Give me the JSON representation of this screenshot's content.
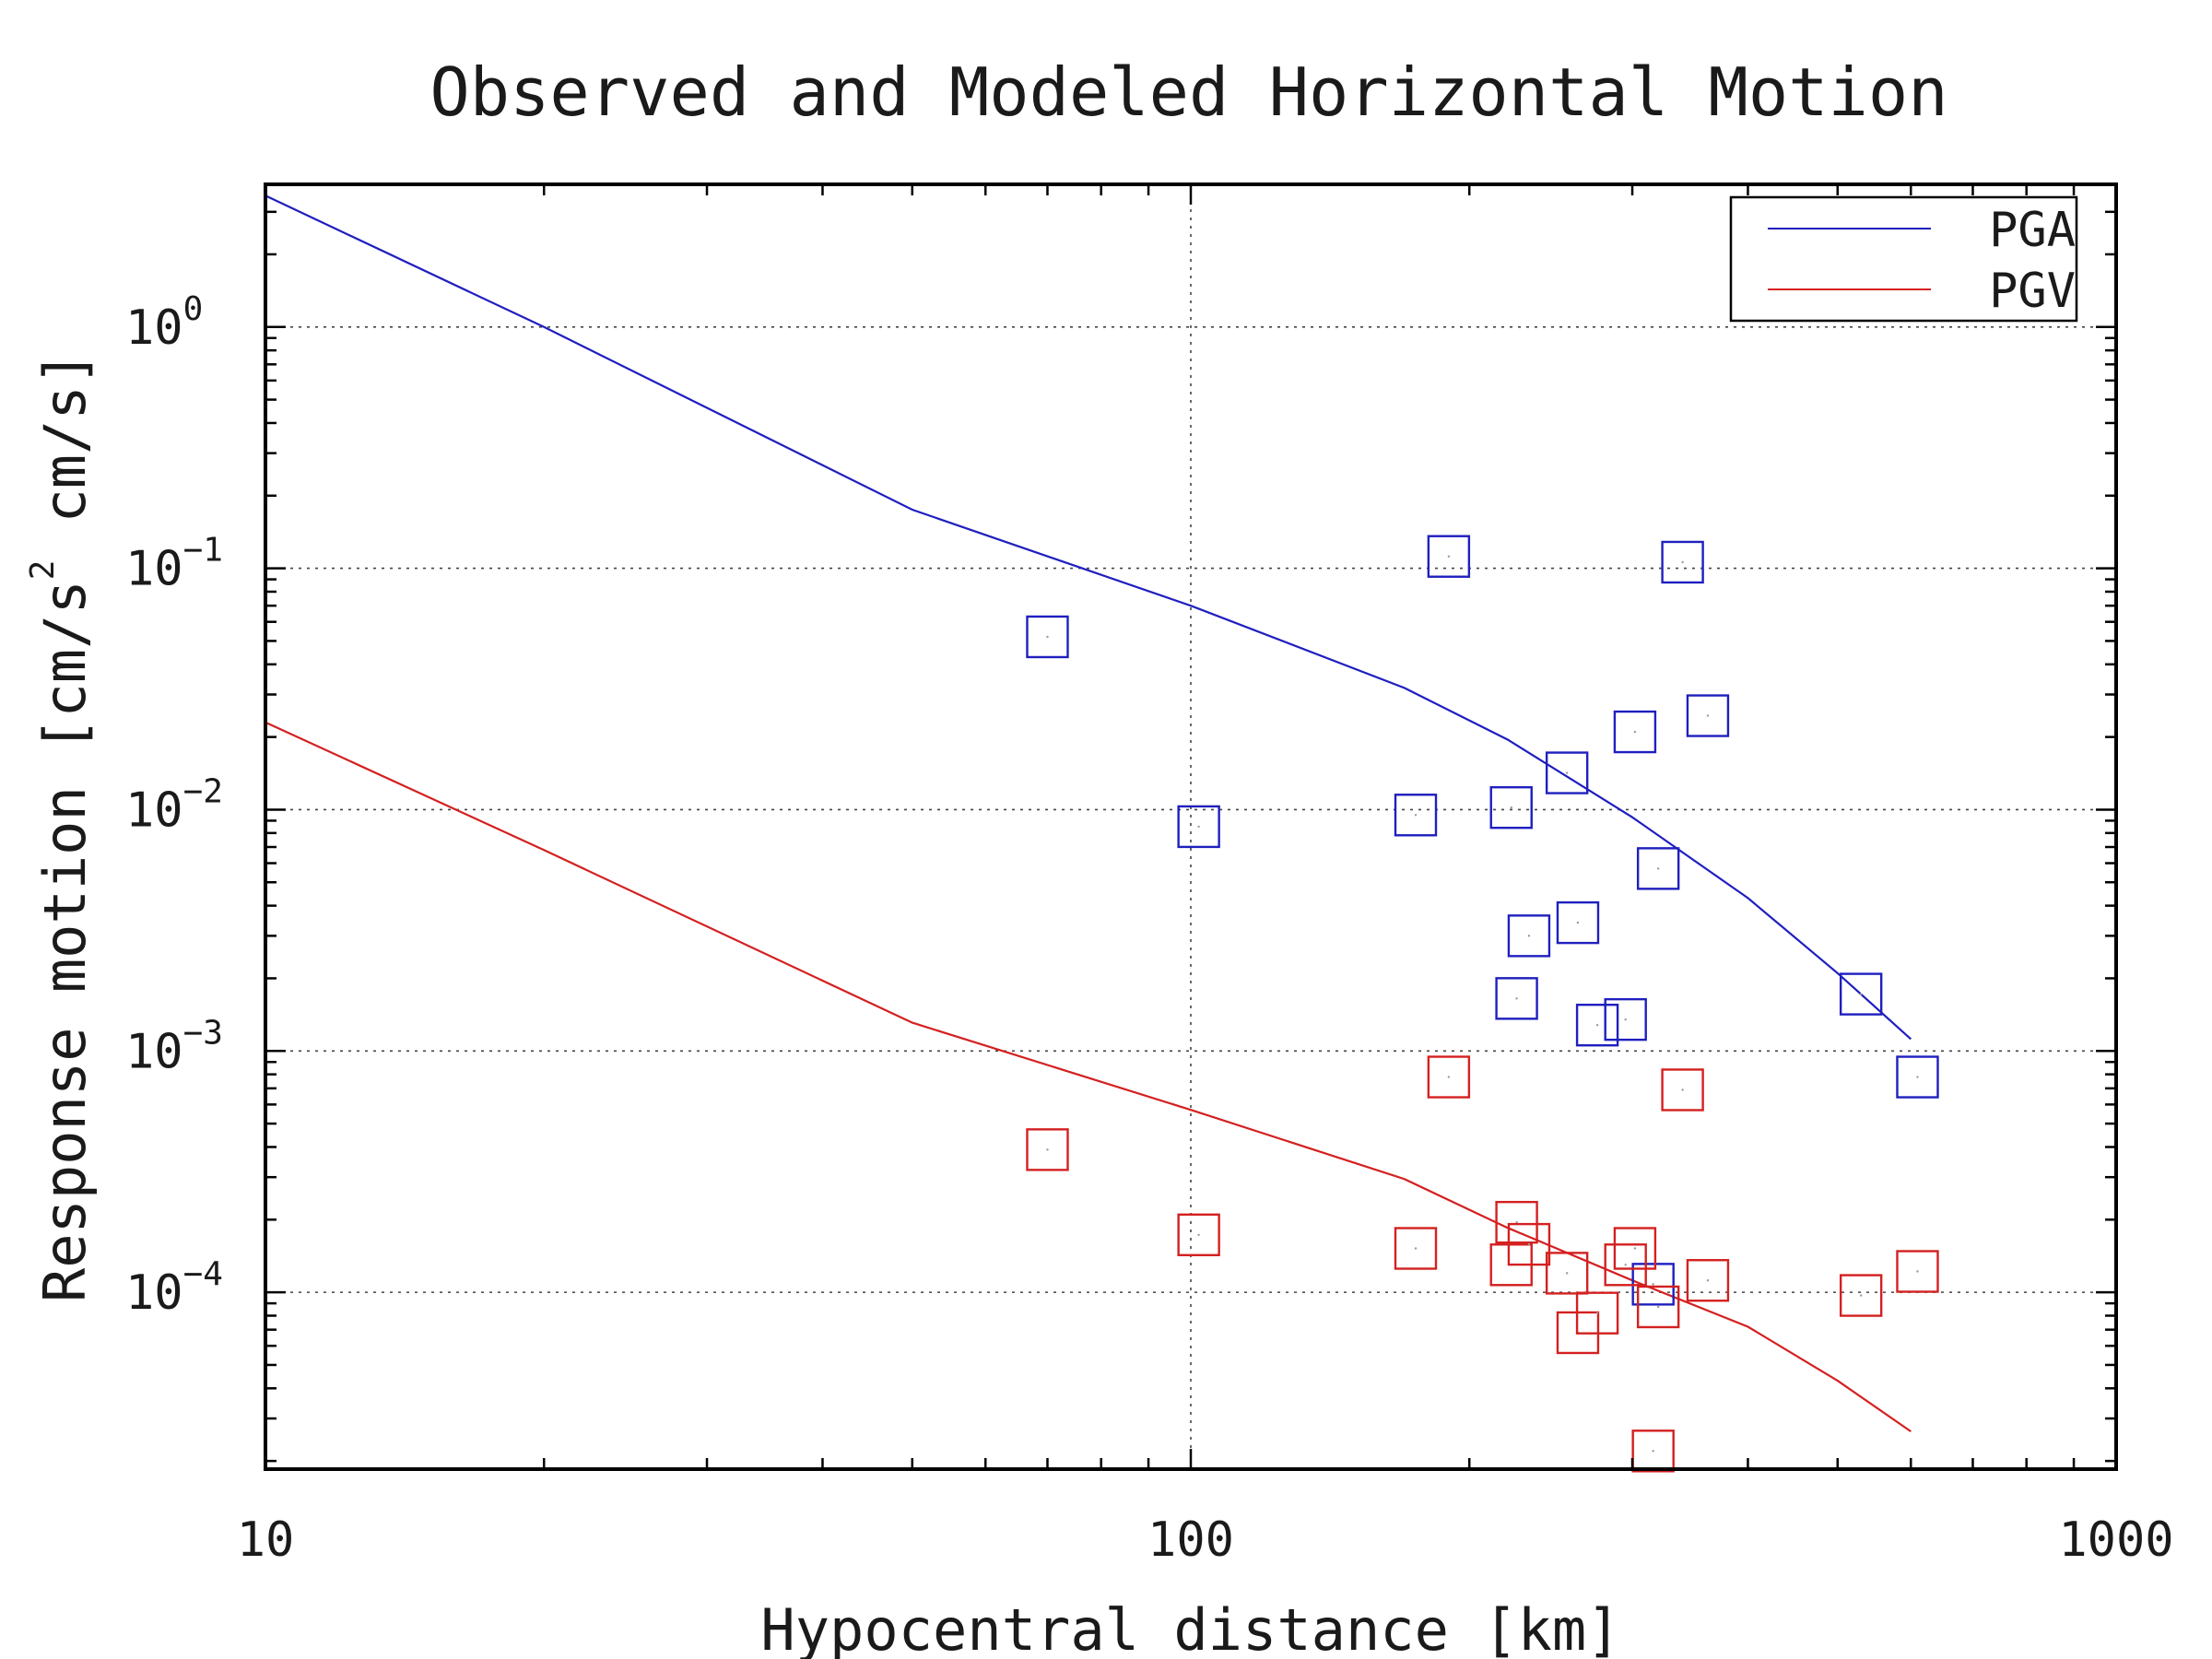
{
  "chart_data": {
    "type": "scatter",
    "title": "Observed and Modeled Horizontal Motion",
    "xlabel": "Hypocentral distance [km]",
    "ylabel": {
      "main": "Response motion [cm/s",
      "sup": "2",
      "tail": "cm/s]"
    },
    "xscale": "log",
    "yscale": "log",
    "xlim": [
      10,
      1000
    ],
    "ylim": [
      1.85e-05,
      3.9
    ],
    "x_ticks": [
      {
        "value": 10,
        "label": "10"
      },
      {
        "value": 100,
        "label": "100"
      },
      {
        "value": 1000,
        "label": "1000"
      }
    ],
    "y_ticks": [
      {
        "value": 1,
        "base": "10",
        "exp": "0"
      },
      {
        "value": 0.1,
        "base": "10",
        "exp": "−1"
      },
      {
        "value": 0.01,
        "base": "10",
        "exp": "−2"
      },
      {
        "value": 0.001,
        "base": "10",
        "exp": "−3"
      },
      {
        "value": 0.0001,
        "base": "10",
        "exp": "−4"
      }
    ],
    "grid": true,
    "legend_position": "top-right",
    "series": [
      {
        "name": "PGA",
        "color": "#1f1fbf",
        "line": [
          [
            10,
            3.5
          ],
          [
            20,
            1.0
          ],
          [
            50,
            0.175
          ],
          [
            100,
            0.07
          ],
          [
            170,
            0.032
          ],
          [
            220,
            0.0195
          ],
          [
            300,
            0.0093
          ],
          [
            400,
            0.0043
          ],
          [
            500,
            0.0021
          ],
          [
            600,
            0.00112
          ]
        ],
        "points": [
          [
            70,
            0.052
          ],
          [
            102,
            0.0085
          ],
          [
            175,
            0.0095
          ],
          [
            190,
            0.112
          ],
          [
            222,
            0.0102
          ],
          [
            225,
            0.00165
          ],
          [
            232,
            0.003
          ],
          [
            255,
            0.0142
          ],
          [
            262,
            0.0034
          ],
          [
            275,
            0.00128
          ],
          [
            295,
            0.00135
          ],
          [
            302,
            0.021
          ],
          [
            320,
            0.0057
          ],
          [
            340,
            0.106
          ],
          [
            362,
            0.0245
          ],
          [
            316,
            0.000108
          ],
          [
            530,
            0.00172
          ],
          [
            610,
            0.00078
          ]
        ]
      },
      {
        "name": "PGV",
        "color": "#d42020",
        "line": [
          [
            10,
            0.023
          ],
          [
            20,
            0.0068
          ],
          [
            50,
            0.00131
          ],
          [
            100,
            0.00057
          ],
          [
            170,
            0.000295
          ],
          [
            220,
            0.000185
          ],
          [
            300,
            0.000112
          ],
          [
            400,
            7.2e-05
          ],
          [
            500,
            4.3e-05
          ],
          [
            600,
            2.65e-05
          ]
        ],
        "points": [
          [
            70,
            0.00039
          ],
          [
            102,
            0.000173
          ],
          [
            175,
            0.000152
          ],
          [
            190,
            0.00078
          ],
          [
            222,
            0.00013
          ],
          [
            225,
            0.000195
          ],
          [
            232,
            0.000158
          ],
          [
            255,
            0.00012
          ],
          [
            262,
            6.8e-05
          ],
          [
            275,
            8.2e-05
          ],
          [
            295,
            0.00013
          ],
          [
            302,
            0.000152
          ],
          [
            320,
            8.7e-05
          ],
          [
            340,
            0.00069
          ],
          [
            362,
            0.000112
          ],
          [
            316,
            2.2e-05
          ],
          [
            530,
            9.7e-05
          ],
          [
            610,
            0.000122
          ]
        ]
      }
    ]
  }
}
